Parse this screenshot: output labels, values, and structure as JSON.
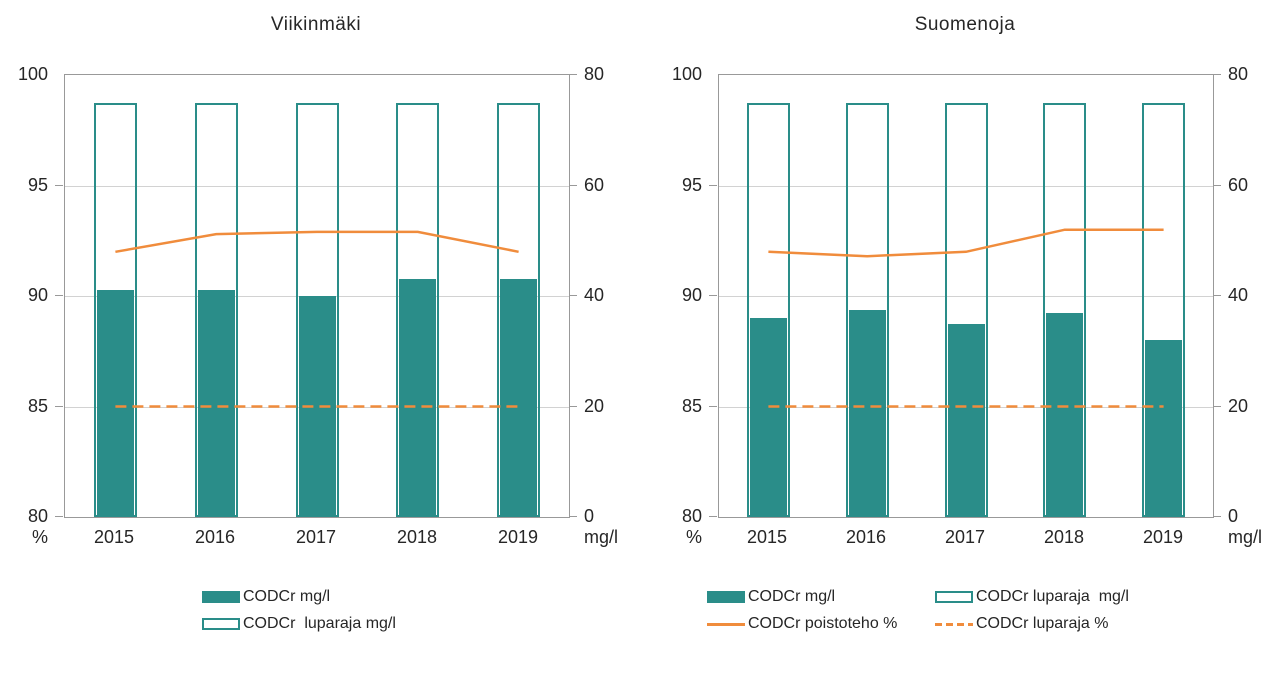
{
  "colors": {
    "teal": "#2a8d89",
    "orange": "#f08c3c",
    "grid": "#d2d2d2",
    "axis": "#999999",
    "text": "#262626"
  },
  "chart_data": [
    {
      "type": "bar+line combo",
      "title": "Viikinmäki",
      "categories": [
        "2015",
        "2016",
        "2017",
        "2018",
        "2019"
      ],
      "left_axis": {
        "unit": "%",
        "min": 80,
        "max": 100,
        "ticks": [
          100,
          95,
          90,
          85,
          80
        ]
      },
      "right_axis": {
        "unit": "mg/l",
        "min": 0,
        "max": 80,
        "ticks": [
          80,
          60,
          40,
          20,
          0
        ]
      },
      "series": [
        {
          "id": "codcr",
          "label": "CODCr mg/l",
          "type": "bar",
          "axis": "right",
          "values": [
            41,
            41,
            40,
            43,
            43
          ]
        },
        {
          "id": "luparaja_mg",
          "label": "CODCr  luparaja mg/l",
          "type": "bar-outline",
          "axis": "right",
          "values": [
            75,
            75,
            75,
            75,
            75
          ]
        },
        {
          "id": "poistoteho",
          "label": "CODCr poistoteho %",
          "type": "line",
          "axis": "left",
          "values": [
            92,
            92.8,
            92.9,
            92.9,
            92
          ]
        },
        {
          "id": "luparaja_pct",
          "label": "CODCr luparaja %",
          "type": "line-dashed",
          "axis": "left",
          "values": [
            85,
            85,
            85,
            85,
            85
          ]
        }
      ],
      "legend": {
        "columns": 1,
        "entries": [
          "codcr",
          "luparaja_mg"
        ]
      }
    },
    {
      "type": "bar+line combo",
      "title": "Suomenoja",
      "categories": [
        "2015",
        "2016",
        "2017",
        "2018",
        "2019"
      ],
      "left_axis": {
        "unit": "%",
        "min": 80,
        "max": 100,
        "ticks": [
          100,
          95,
          90,
          85,
          80
        ]
      },
      "right_axis": {
        "unit": "mg/l",
        "min": 0,
        "max": 80,
        "ticks": [
          80,
          60,
          40,
          20,
          0
        ]
      },
      "series": [
        {
          "id": "codcr",
          "label": "CODCr mg/l",
          "type": "bar",
          "axis": "right",
          "values": [
            36,
            37.5,
            35,
            37,
            32
          ]
        },
        {
          "id": "luparaja_mg",
          "label": "CODCr luparaja  mg/l",
          "type": "bar-outline",
          "axis": "right",
          "values": [
            75,
            75,
            75,
            75,
            75
          ]
        },
        {
          "id": "poistoteho",
          "label": "CODCr poistoteho %",
          "type": "line",
          "axis": "left",
          "values": [
            92,
            91.8,
            92,
            93,
            93
          ]
        },
        {
          "id": "luparaja_pct",
          "label": "CODCr luparaja %",
          "type": "line-dashed",
          "axis": "left",
          "values": [
            85,
            85,
            85,
            85,
            85
          ]
        }
      ],
      "legend": {
        "columns": 2,
        "entries": [
          "codcr",
          "luparaja_mg",
          "poistoteho",
          "luparaja_pct"
        ]
      }
    }
  ]
}
